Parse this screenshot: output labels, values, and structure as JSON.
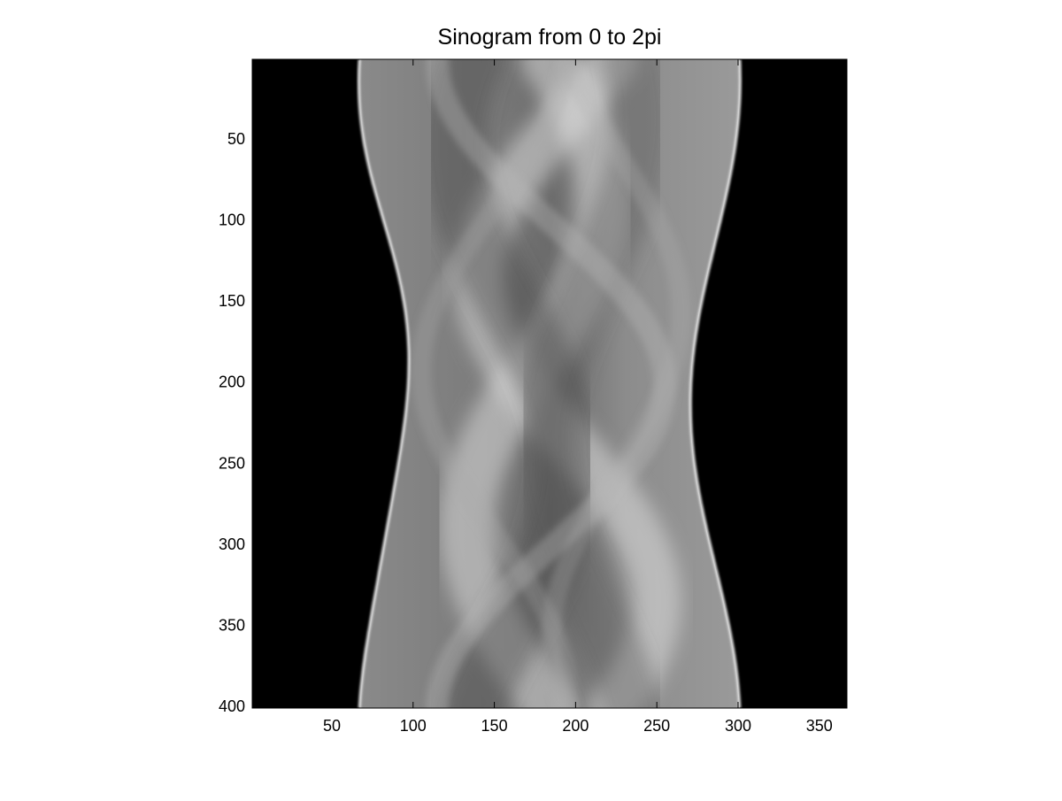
{
  "chart_data": {
    "type": "heatmap",
    "title": "Sinogram from 0 to 2pi",
    "colormap": "gray",
    "x_range": [
      1,
      367
    ],
    "y_range": [
      1,
      401
    ],
    "y_direction": "reversed",
    "x_ticks": [
      50,
      100,
      150,
      200,
      250,
      300,
      350
    ],
    "y_ticks": [
      50,
      100,
      150,
      200,
      250,
      300,
      350,
      400
    ],
    "xlabel": "",
    "ylabel": "",
    "grid": false,
    "colors": {
      "background": "#000000",
      "figure": "#ffffff"
    }
  }
}
